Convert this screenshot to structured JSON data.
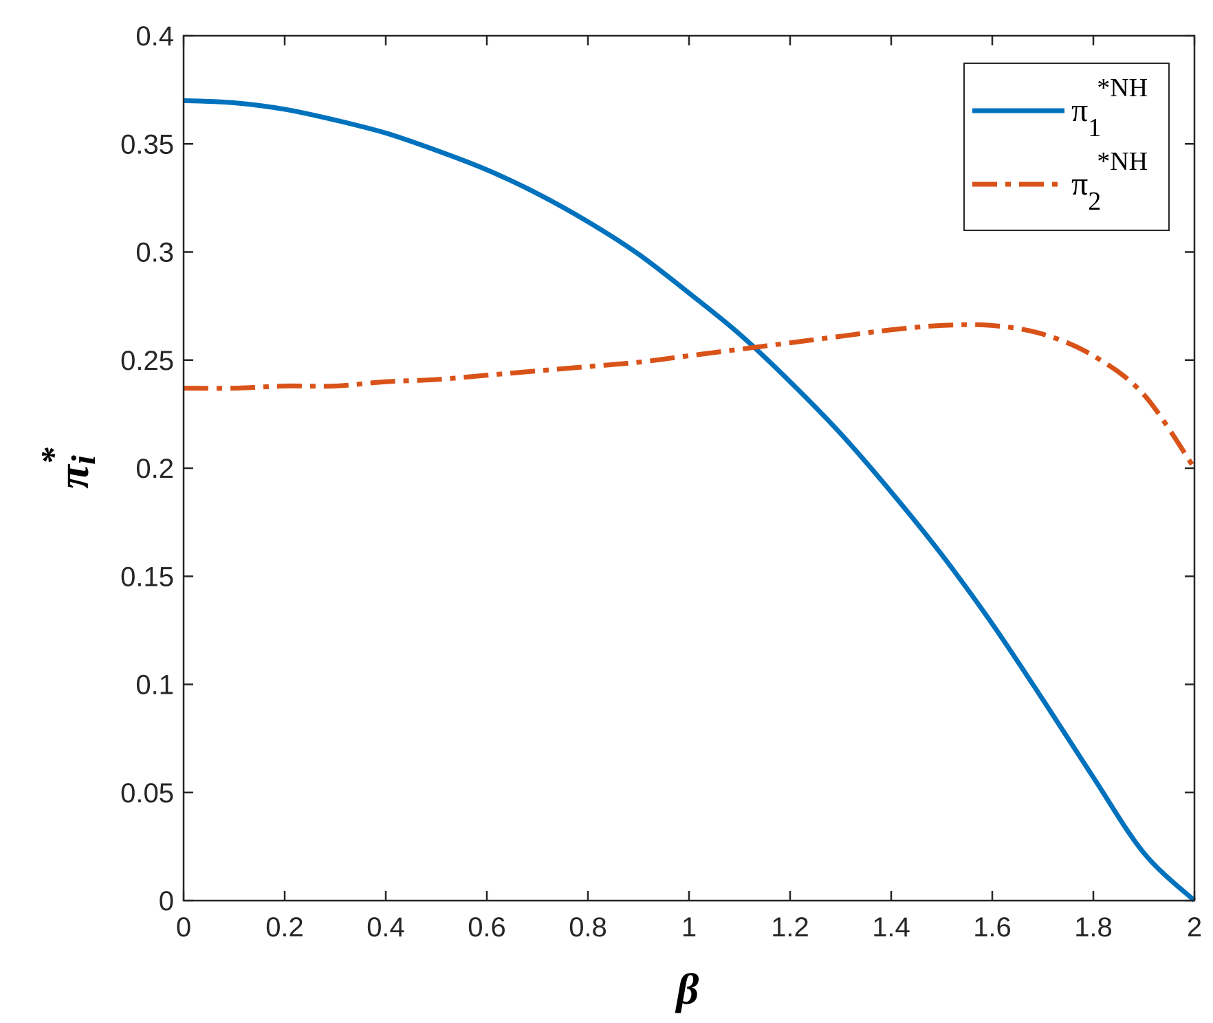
{
  "chart_data": {
    "type": "line",
    "title": "",
    "xlabel": "β",
    "ylabel": {
      "base": "π",
      "superscript": "*",
      "subscript": "i"
    },
    "xlim": [
      0,
      2
    ],
    "ylim": [
      0,
      0.4
    ],
    "xticks": [
      "0",
      "0.2",
      "0.4",
      "0.6",
      "0.8",
      "1",
      "1.2",
      "1.4",
      "1.6",
      "1.8",
      "2"
    ],
    "yticks": [
      "0",
      "0.05",
      "0.1",
      "0.15",
      "0.2",
      "0.25",
      "0.3",
      "0.35",
      "0.4"
    ],
    "grid": false,
    "legend_position": "top-right",
    "x": [
      0,
      0.1,
      0.2,
      0.3,
      0.4,
      0.5,
      0.6,
      0.7,
      0.8,
      0.9,
      1.0,
      1.1,
      1.2,
      1.3,
      1.4,
      1.5,
      1.6,
      1.7,
      1.8,
      1.9,
      2.0
    ],
    "series": [
      {
        "name": {
          "base": "π",
          "subscript": "1",
          "superscript": "*NH"
        },
        "color": "#0072BD",
        "style": "solid",
        "values": [
          0.37,
          0.369,
          0.366,
          0.361,
          0.355,
          0.347,
          0.338,
          0.327,
          0.314,
          0.299,
          0.281,
          0.262,
          0.24,
          0.216,
          0.189,
          0.16,
          0.128,
          0.093,
          0.057,
          0.022,
          0.0
        ]
      },
      {
        "name": {
          "base": "π",
          "subscript": "2",
          "superscript": "*NH"
        },
        "color": "#D95319",
        "style": "dashdot",
        "values": [
          0.237,
          0.237,
          0.238,
          0.238,
          0.24,
          0.241,
          0.243,
          0.245,
          0.247,
          0.249,
          0.252,
          0.255,
          0.258,
          0.261,
          0.264,
          0.266,
          0.266,
          0.262,
          0.252,
          0.234,
          0.2
        ]
      }
    ]
  }
}
